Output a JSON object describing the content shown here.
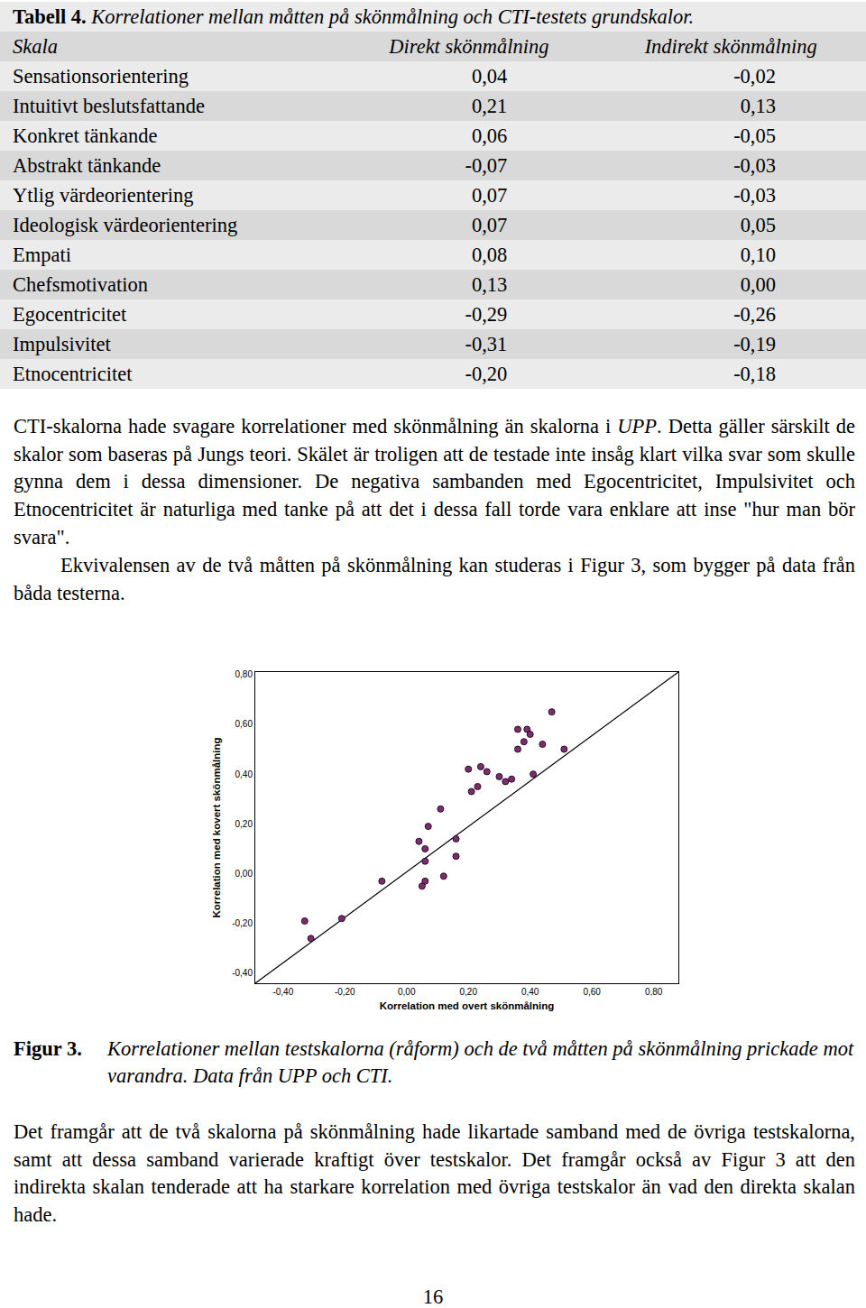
{
  "table": {
    "caption_label": "Tabell 4.",
    "caption": "Korrelationer mellan måtten på skönmålning och CTI-testets grundskalor.",
    "header": [
      "Skala",
      "Direkt skönmålning",
      "Indirekt skönmålning"
    ],
    "rows": [
      [
        "Sensationsorientering",
        "0,04",
        "-0,02"
      ],
      [
        "Intuitivt beslutsfattande",
        "0,21",
        "0,13"
      ],
      [
        "Konkret tänkande",
        "0,06",
        "-0,05"
      ],
      [
        "Abstrakt tänkande",
        "-0,07",
        "-0,03"
      ],
      [
        "Ytlig värdeorientering",
        "0,07",
        "-0,03"
      ],
      [
        "Ideologisk värdeorientering",
        "0,07",
        "0,05"
      ],
      [
        "Empati",
        "0,08",
        "0,10"
      ],
      [
        "Chefsmotivation",
        "0,13",
        "0,00"
      ],
      [
        "Egocentricitet",
        "-0,29",
        "-0,26"
      ],
      [
        "Impulsivitet",
        "-0,31",
        "-0,19"
      ],
      [
        "Etnocentricitet",
        "-0,20",
        "-0,18"
      ]
    ]
  },
  "paragraphs_before": [
    [
      "CTI-skalorna hade svagare korrelationer med skönmålning än skalorna i ",
      {
        "em": "UPP"
      },
      ". Detta gäller särskilt de skalor som baseras på Jungs teori. Skälet är troligen att de testade inte insåg klart vilka svar som skulle gynna dem i dessa dimensioner. De negativa sambanden med Egocentricitet, Impulsivitet och Etnocentricitet är naturliga med tanke på att det i dessa fall torde vara enklare att inse \"hur man bör svara\"."
    ],
    [
      "Ekvivalensen av de två måtten på skönmålning kan studeras i Figur 3, som bygger på data från båda testerna."
    ]
  ],
  "chart_data": {
    "type": "scatter",
    "x_label": "Korrelation med overt skönmålning",
    "y_label": "Korrelation med kovert skönmålning",
    "x": [
      -0.33,
      -0.31,
      -0.21,
      -0.08,
      0.04,
      0.06,
      0.07,
      0.06,
      0.06,
      0.05,
      0.11,
      0.12,
      0.16,
      0.16,
      0.2,
      0.21,
      0.23,
      0.24,
      0.26,
      0.3,
      0.32,
      0.34,
      0.36,
      0.36,
      0.38,
      0.39,
      0.4,
      0.41,
      0.44,
      0.47,
      0.51
    ],
    "values": [
      -0.19,
      -0.26,
      -0.18,
      -0.03,
      0.13,
      0.1,
      0.19,
      0.05,
      -0.03,
      -0.05,
      0.26,
      -0.01,
      0.14,
      0.07,
      0.42,
      0.33,
      0.35,
      0.43,
      0.41,
      0.39,
      0.37,
      0.38,
      0.5,
      0.58,
      0.53,
      0.58,
      0.56,
      0.4,
      0.52,
      0.65,
      0.5
    ],
    "color": "#7b2e6e",
    "marker": "circle",
    "xlim": [
      -0.49,
      0.88
    ],
    "ylim": [
      -0.44,
      0.81
    ],
    "xticks": [
      {
        "value": -0.4,
        "label": "-0,40"
      },
      {
        "value": -0.2,
        "label": "-0,20"
      },
      {
        "value": 0,
        "label": "0,00"
      },
      {
        "value": 0.2,
        "label": "0,20"
      },
      {
        "value": 0.4,
        "label": "0,40"
      },
      {
        "value": 0.6,
        "label": "0,60"
      },
      {
        "value": 0.8,
        "label": "0,80"
      }
    ],
    "yticks": [
      {
        "value": -0.4,
        "label": "-0,40"
      },
      {
        "value": -0.2,
        "label": "-0,20"
      },
      {
        "value": 0,
        "label": "0,00"
      },
      {
        "value": 0.2,
        "label": "0,20"
      },
      {
        "value": 0.4,
        "label": "0,40"
      },
      {
        "value": 0.6,
        "label": "0,60"
      },
      {
        "value": 0.8,
        "label": "0,80"
      }
    ],
    "grid": false
  },
  "figure_caption": {
    "label": "Figur 3.",
    "text": "Korrelationer mellan testskalorna (råform) och de två måtten på skönmålning prickade mot varandra. Data från UPP och CTI."
  },
  "paragraphs_after": [
    [
      "Det framgår att de två skalorna på skönmålning hade likartade samband med de övriga testskalorna, samt att dessa samband varierade kraftigt över testskalor. Det framgår också av Figur 3 att den indirekta skalan tenderade att ha starkare korrelation med övriga testskalor än vad den direkta skalan hade."
    ]
  ],
  "page_number": "16"
}
